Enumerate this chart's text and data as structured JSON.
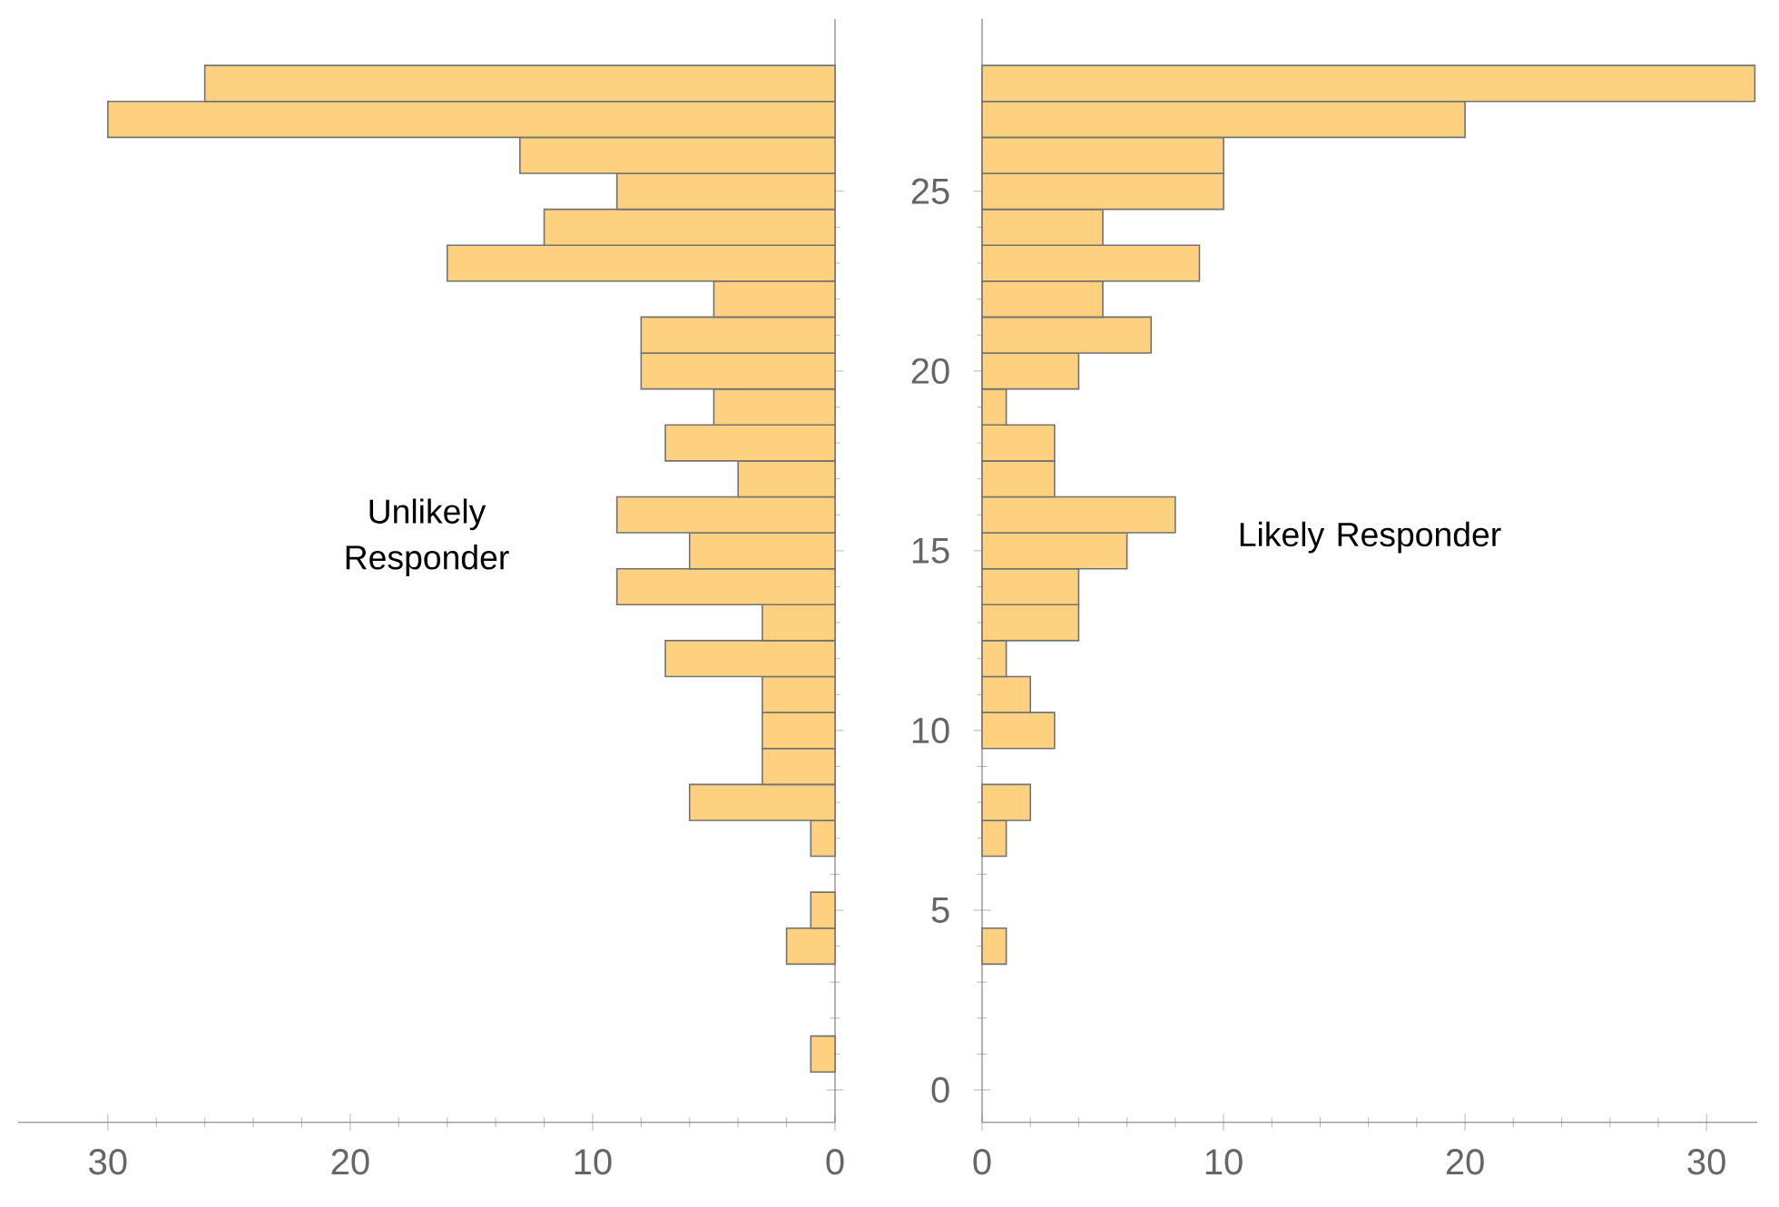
{
  "chart_data": [
    {
      "type": "histogram",
      "orientation": "horizontal",
      "color": "#fdd17f",
      "bins": [
        0.5,
        1.5,
        2.5,
        3.5,
        4.5,
        5.5,
        6.5,
        7.5,
        8.5,
        9.5,
        10.5,
        11.5,
        12.5,
        13.5,
        14.5,
        15.5,
        16.5,
        17.5,
        18.5,
        19.5,
        20.5,
        21.5,
        22.5,
        23.5,
        24.5,
        25.5,
        26.5,
        27.5,
        28.5
      ],
      "values": [
        1,
        0,
        0,
        2,
        1,
        0,
        1,
        6,
        3,
        3,
        3,
        7,
        3,
        9,
        6,
        9,
        4,
        7,
        5,
        8,
        8,
        5,
        16,
        12,
        9,
        13,
        30,
        26
      ],
      "xlim": [
        33.7,
        0
      ],
      "xticks": [
        0,
        10,
        20,
        30
      ],
      "ylim": [
        -0.9,
        29.8
      ],
      "yticks": [
        0,
        5,
        10,
        15,
        20,
        25
      ],
      "tick_labels": "x",
      "annotations": [
        "Unlikely Responder"
      ]
    },
    {
      "type": "histogram",
      "orientation": "horizontal",
      "color": "#fdd17f",
      "bins": [
        0.5,
        1.5,
        2.5,
        3.5,
        4.5,
        5.5,
        6.5,
        7.5,
        8.5,
        9.5,
        10.5,
        11.5,
        12.5,
        13.5,
        14.5,
        15.5,
        16.5,
        17.5,
        18.5,
        19.5,
        20.5,
        21.5,
        22.5,
        23.5,
        24.5,
        25.5,
        26.5,
        27.5,
        28.5
      ],
      "values": [
        0,
        0,
        0,
        1,
        0,
        0,
        1,
        2,
        0,
        3,
        2,
        1,
        4,
        4,
        6,
        8,
        3,
        3,
        1,
        4,
        7,
        5,
        9,
        5,
        10,
        10,
        20,
        32
      ],
      "xlim": [
        0,
        32.1
      ],
      "xticks": [
        0,
        10,
        20,
        30
      ],
      "ylim": [
        -0.9,
        29.8
      ],
      "yticks": [
        0,
        5,
        10,
        15,
        20,
        25
      ],
      "annotations": [
        "Likely Responder"
      ]
    }
  ]
}
